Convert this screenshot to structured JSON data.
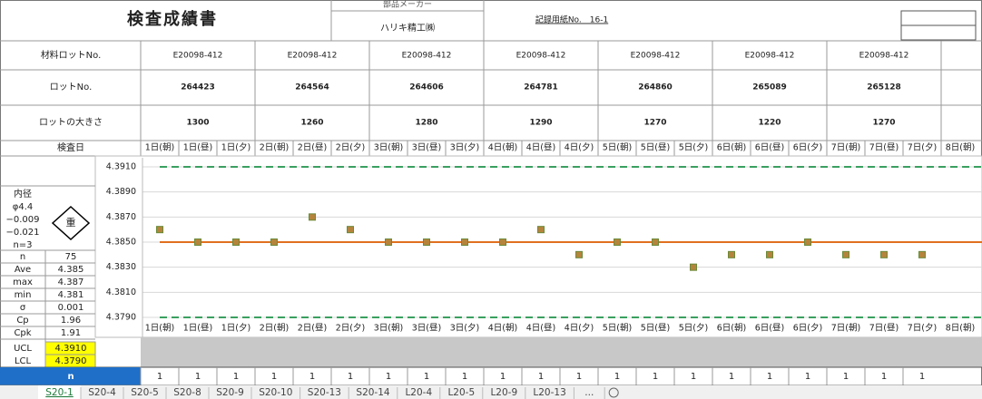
{
  "header": {
    "title": "検査成績書",
    "maker_label": "部品メーカー",
    "maker": "ハリキ精工㈱",
    "record_no": "記録用紙No.　16-1"
  },
  "table": {
    "row_labels": [
      "材料ロットNo.",
      "ロットNo.",
      "ロットの大きさ",
      "検査日"
    ],
    "material_lots": [
      "E20098-412",
      "E20098-412",
      "E20098-412",
      "E20098-412",
      "E20098-412",
      "E20098-412",
      "E20098-412"
    ],
    "lots": [
      264423,
      264564,
      264606,
      264781,
      264860,
      265089,
      265128
    ],
    "lot_sizes": [
      1300,
      1260,
      1280,
      1290,
      1270,
      1220,
      1270
    ]
  },
  "spec": {
    "lines": [
      "内径",
      "φ4.4",
      "−0.009",
      "−0.021",
      "n=3"
    ],
    "mark": "重"
  },
  "stats": [
    {
      "label": "n",
      "value": 75
    },
    {
      "label": "Ave",
      "value": 4.385
    },
    {
      "label": "max",
      "value": 4.387
    },
    {
      "label": "min",
      "value": 4.381
    },
    {
      "label": "σ",
      "value": 0.001
    },
    {
      "label": "Cp",
      "value": 1.96
    },
    {
      "label": "Cpk",
      "value": 1.91
    }
  ],
  "chart": {
    "categories": [
      "1日(朝)",
      "1日(昼)",
      "1日(夕)",
      "2日(朝)",
      "2日(昼)",
      "2日(夕)",
      "3日(朝)",
      "3日(昼)",
      "3日(夕)",
      "4日(朝)",
      "4日(昼)",
      "4日(夕)",
      "5日(朝)",
      "5日(昼)",
      "5日(夕)",
      "6日(朝)",
      "6日(昼)",
      "6日(夕)",
      "7日(朝)",
      "7日(昼)",
      "7日(夕)",
      "8日(朝)"
    ],
    "values": [
      4.386,
      4.385,
      4.385,
      4.385,
      4.387,
      4.386,
      4.385,
      4.385,
      4.385,
      4.385,
      4.386,
      4.384,
      4.385,
      4.385,
      4.383,
      4.384,
      4.384,
      4.385,
      4.384,
      4.384,
      4.384,
      null
    ],
    "ylim": [
      4.379,
      4.391
    ],
    "yticks": [
      {
        "value": 4.379,
        "label": "4.3790"
      },
      {
        "value": 4.381,
        "label": "4.3810"
      },
      {
        "value": 4.383,
        "label": "4.3830"
      },
      {
        "value": 4.385,
        "label": "4.3850"
      },
      {
        "value": 4.387,
        "label": "4.3870"
      },
      {
        "value": 4.389,
        "label": "4.3890"
      },
      {
        "value": 4.391,
        "label": "4.3910"
      }
    ],
    "ucl_label": "UCL",
    "ucl": {
      "value": 4.391,
      "label": "4.3910"
    },
    "lcl_label": "LCL",
    "lcl": {
      "value": 4.379,
      "label": "4.3790"
    },
    "marker_color": "#b5843c",
    "center_color": "#e07020",
    "limit_color": "#3aa060",
    "grid": true
  },
  "n_row": {
    "label": "n",
    "values": [
      1,
      1,
      1,
      1,
      1,
      1,
      1,
      1,
      1,
      1,
      1,
      1,
      1,
      1,
      1,
      1,
      1,
      1,
      1,
      1,
      1
    ]
  },
  "tabs": [
    "S20-1",
    "S20-4",
    "S20-5",
    "S20-8",
    "S20-9",
    "S20-10",
    "S20-13",
    "S20-14",
    "L20-4",
    "L20-5",
    "L20-9",
    "L20-13",
    "..."
  ]
}
